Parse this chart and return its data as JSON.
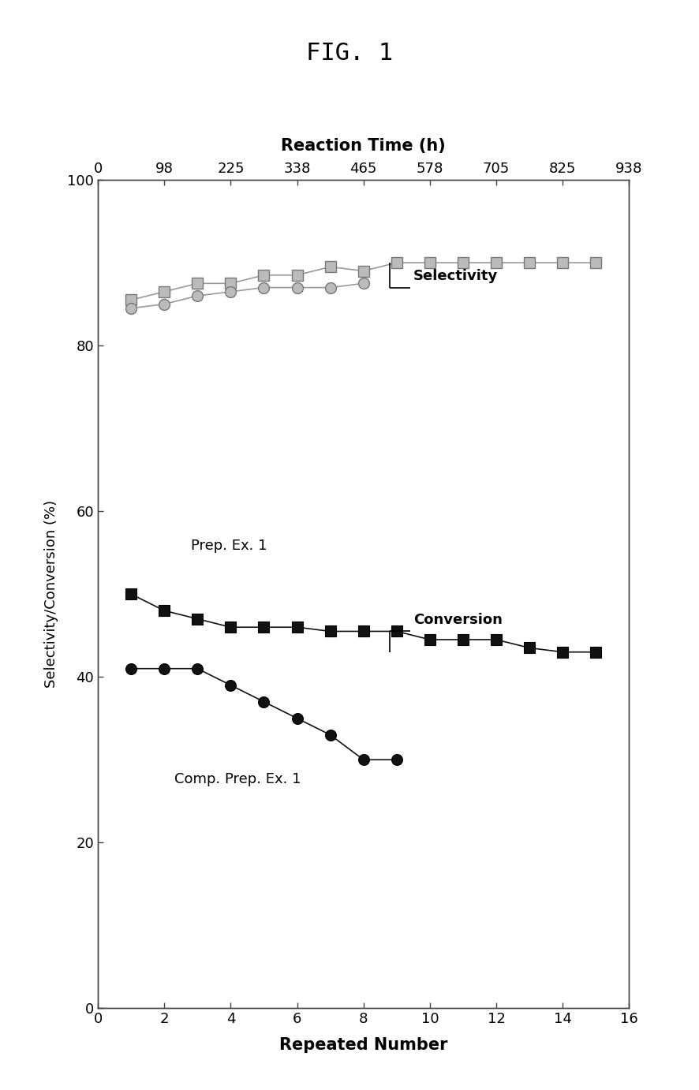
{
  "fig_title": "FIG. 1",
  "top_xlabel": "Reaction Time (h)",
  "bottom_xlabel": "Repeated Number",
  "ylabel": "Selectivity/Conversion (%)",
  "top_x_ticks": [
    0,
    98,
    225,
    338,
    465,
    578,
    705,
    825,
    938
  ],
  "bottom_x_ticks": [
    0,
    2,
    4,
    6,
    8,
    10,
    12,
    14,
    16
  ],
  "ylim": [
    0,
    100
  ],
  "xlim": [
    0,
    16
  ],
  "selectivity_prep1_x": [
    1,
    2,
    3,
    4,
    5,
    6,
    7,
    8,
    9,
    10,
    11,
    12,
    13,
    14,
    15
  ],
  "selectivity_prep1_y": [
    85.5,
    86.5,
    87.5,
    87.5,
    88.5,
    88.5,
    89.5,
    89.0,
    90.0,
    90.0,
    90.0,
    90.0,
    90.0,
    90.0,
    90.0
  ],
  "selectivity_comp1_x": [
    1,
    2,
    3,
    4,
    5,
    6,
    7,
    8
  ],
  "selectivity_comp1_y": [
    84.5,
    85.0,
    86.0,
    86.5,
    87.0,
    87.0,
    87.0,
    87.5
  ],
  "conversion_prep1_x": [
    1,
    2,
    3,
    4,
    5,
    6,
    7,
    8,
    9,
    10,
    11,
    12,
    13,
    14,
    15
  ],
  "conversion_prep1_y": [
    50,
    48,
    47,
    46,
    46,
    46,
    45.5,
    45.5,
    45.5,
    44.5,
    44.5,
    44.5,
    43.5,
    43.0,
    43.0
  ],
  "conversion_comp1_x": [
    1,
    2,
    3,
    4,
    5,
    6,
    7,
    8,
    9
  ],
  "conversion_comp1_y": [
    41,
    41,
    41,
    39,
    37,
    35,
    33,
    30,
    30
  ],
  "sel_color": "#999999",
  "conv_dark_color": "#111111",
  "bg_color": "#ffffff"
}
